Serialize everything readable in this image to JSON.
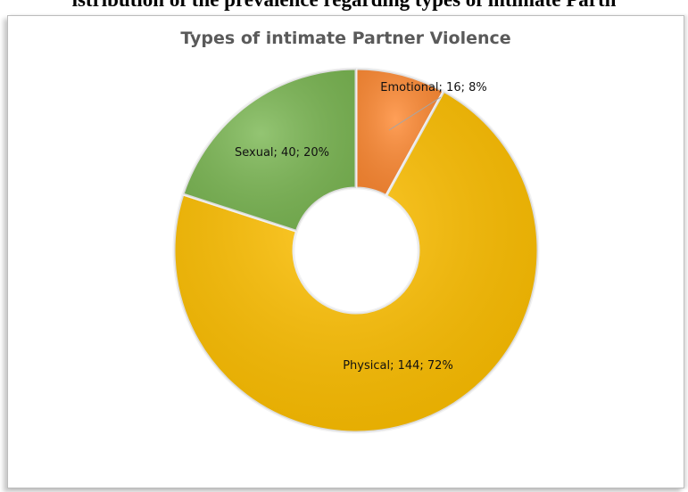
{
  "figure_caption": "istribution of the prevalence regarding types of intimate Partn",
  "chart_data": {
    "type": "pie",
    "title": "Types of intimate Partner Violence",
    "series": [
      {
        "name": "Emotional",
        "value": 16,
        "percent": "8%",
        "color": "#ff8a33",
        "label": "Emotional; 16; 8%"
      },
      {
        "name": "Physical",
        "value": 144,
        "percent": "72%",
        "color": "#ffc000",
        "label": "Physical; 144; 72%"
      },
      {
        "name": "Sexual",
        "value": 40,
        "percent": "20%",
        "color": "#7cb854",
        "label": "Sexual; 40; 20%"
      }
    ],
    "legend": "none"
  }
}
